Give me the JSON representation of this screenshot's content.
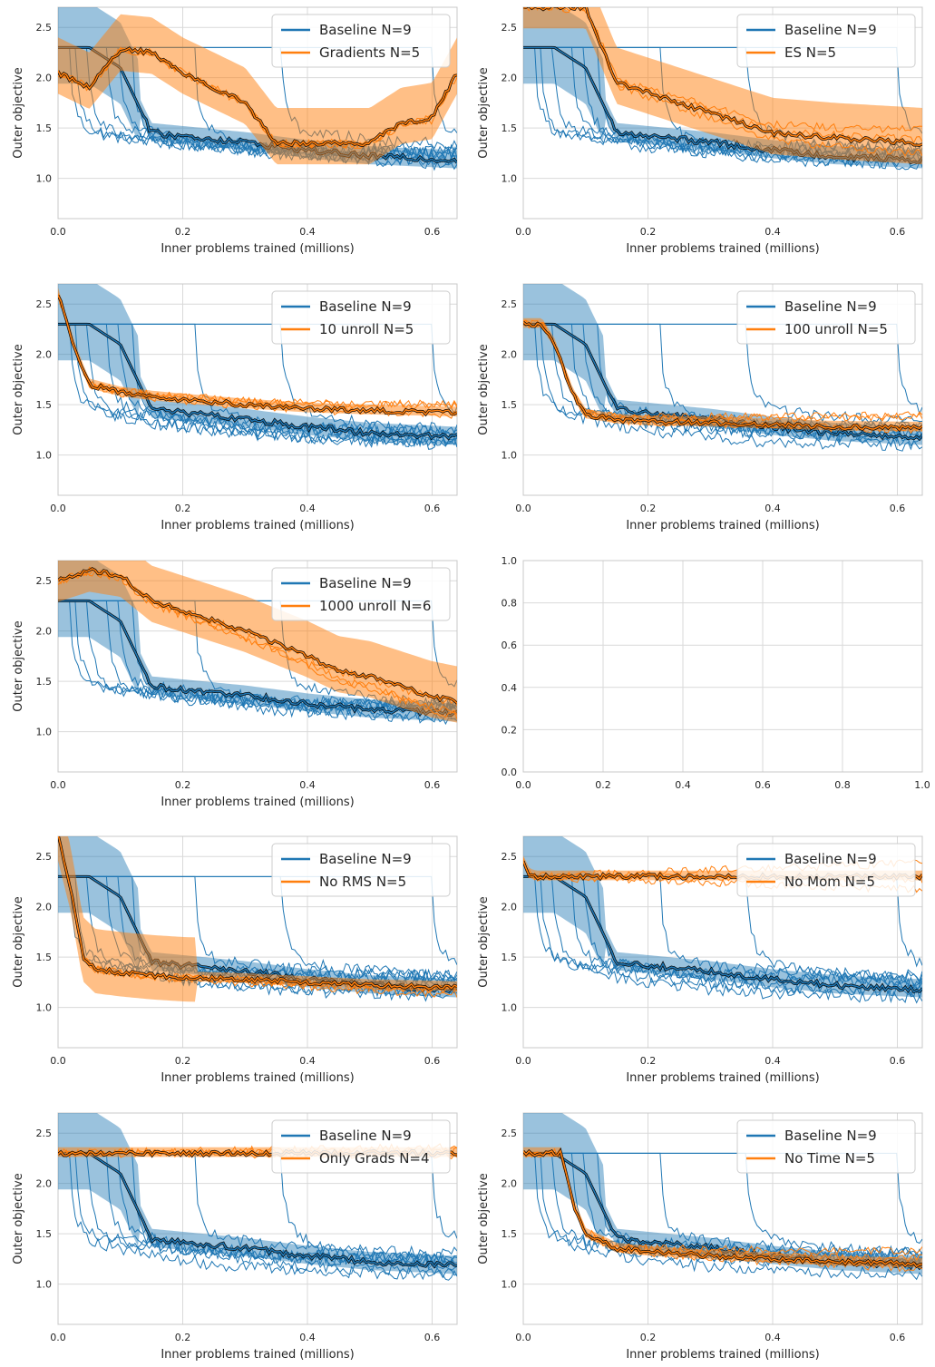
{
  "colors": {
    "baseline": "#1f77b4",
    "variant": "#ff7f0e",
    "grid": "#d9d9d9",
    "frame": "#c8c8c8"
  },
  "chart_data": [
    {
      "type": "line",
      "panel": 1,
      "xlabel": "Inner problems trained (millions)",
      "ylabel": "Outer objective",
      "xlim": [
        0,
        0.64
      ],
      "ylim": [
        0.6,
        2.7
      ],
      "xticks": [
        "0.0",
        "0.2",
        "0.4",
        "0.6"
      ],
      "yticks": [
        "1.0",
        "1.5",
        "2.0",
        "2.5"
      ],
      "grid": true,
      "legend_position": "top-right",
      "series": [
        {
          "name": "Baseline N=9",
          "x": [
            0,
            0.05,
            0.1,
            0.15,
            0.2,
            0.3,
            0.4,
            0.5,
            0.64
          ],
          "y": [
            2.3,
            2.3,
            2.1,
            1.45,
            1.42,
            1.36,
            1.28,
            1.22,
            1.18
          ]
        },
        {
          "name": "Gradients N=5",
          "x": [
            0,
            0.05,
            0.1,
            0.15,
            0.2,
            0.3,
            0.35,
            0.4,
            0.5,
            0.55,
            0.6,
            0.64
          ],
          "y": [
            2.05,
            1.9,
            2.28,
            2.25,
            2.05,
            1.75,
            1.35,
            1.35,
            1.35,
            1.55,
            1.6,
            2.05
          ]
        }
      ]
    },
    {
      "type": "line",
      "panel": 2,
      "xlabel": "Inner problems trained (millions)",
      "ylabel": "Outer objective",
      "xlim": [
        0,
        0.64
      ],
      "ylim": [
        0.6,
        2.7
      ],
      "xticks": [
        "0.0",
        "0.2",
        "0.4",
        "0.6"
      ],
      "yticks": [
        "1.0",
        "1.5",
        "2.0",
        "2.5"
      ],
      "grid": true,
      "legend_position": "top-right",
      "series": [
        {
          "name": "Baseline N=9",
          "x": [
            0,
            0.05,
            0.1,
            0.15,
            0.2,
            0.3,
            0.4,
            0.5,
            0.64
          ],
          "y": [
            2.3,
            2.3,
            2.1,
            1.45,
            1.42,
            1.36,
            1.28,
            1.22,
            1.18
          ]
        },
        {
          "name": "ES N=5",
          "x": [
            0,
            0.1,
            0.15,
            0.2,
            0.3,
            0.35,
            0.4,
            0.5,
            0.64
          ],
          "y": [
            2.7,
            2.7,
            1.95,
            1.85,
            1.65,
            1.55,
            1.45,
            1.4,
            1.35
          ]
        }
      ]
    },
    {
      "type": "line",
      "panel": 3,
      "xlabel": "Inner problems trained (millions)",
      "ylabel": "Outer objective",
      "xlim": [
        0,
        0.64
      ],
      "ylim": [
        0.6,
        2.7
      ],
      "xticks": [
        "0.0",
        "0.2",
        "0.4",
        "0.6"
      ],
      "yticks": [
        "1.0",
        "1.5",
        "2.0",
        "2.5"
      ],
      "grid": true,
      "legend_position": "top-right",
      "series": [
        {
          "name": "Baseline N=9",
          "x": [
            0,
            0.05,
            0.1,
            0.15,
            0.2,
            0.3,
            0.4,
            0.5,
            0.64
          ],
          "y": [
            2.3,
            2.3,
            2.1,
            1.45,
            1.42,
            1.36,
            1.28,
            1.22,
            1.18
          ]
        },
        {
          "name": "10 unroll N=5",
          "x": [
            0,
            0.03,
            0.05,
            0.1,
            0.15,
            0.2,
            0.3,
            0.4,
            0.5,
            0.64
          ],
          "y": [
            2.6,
            2.0,
            1.7,
            1.62,
            1.58,
            1.55,
            1.5,
            1.46,
            1.44,
            1.42
          ]
        }
      ]
    },
    {
      "type": "line",
      "panel": 4,
      "xlabel": "Inner problems trained (millions)",
      "ylabel": "Outer objective",
      "xlim": [
        0,
        0.64
      ],
      "ylim": [
        0.6,
        2.7
      ],
      "xticks": [
        "0.0",
        "0.2",
        "0.4",
        "0.6"
      ],
      "yticks": [
        "1.0",
        "1.5",
        "2.0",
        "2.5"
      ],
      "grid": true,
      "legend_position": "top-right",
      "series": [
        {
          "name": "Baseline N=9",
          "x": [
            0,
            0.05,
            0.1,
            0.15,
            0.2,
            0.3,
            0.4,
            0.5,
            0.64
          ],
          "y": [
            2.3,
            2.3,
            2.1,
            1.45,
            1.42,
            1.36,
            1.28,
            1.22,
            1.18
          ]
        },
        {
          "name": "100 unroll N=5",
          "x": [
            0,
            0.03,
            0.05,
            0.08,
            0.1,
            0.15,
            0.2,
            0.3,
            0.4,
            0.5,
            0.64
          ],
          "y": [
            2.3,
            2.3,
            2.1,
            1.6,
            1.4,
            1.35,
            1.33,
            1.32,
            1.3,
            1.28,
            1.27
          ]
        }
      ]
    },
    {
      "type": "line",
      "panel": 5,
      "xlabel": "Inner problems trained (millions)",
      "ylabel": "Outer objective",
      "xlim": [
        0,
        0.64
      ],
      "ylim": [
        0.6,
        2.7
      ],
      "xticks": [
        "0.0",
        "0.2",
        "0.4",
        "0.6"
      ],
      "yticks": [
        "1.0",
        "1.5",
        "2.0",
        "2.5"
      ],
      "grid": true,
      "legend_position": "top-right",
      "series": [
        {
          "name": "Baseline N=9",
          "x": [
            0,
            0.05,
            0.1,
            0.15,
            0.2,
            0.3,
            0.4,
            0.5,
            0.64
          ],
          "y": [
            2.3,
            2.3,
            2.1,
            1.45,
            1.42,
            1.36,
            1.28,
            1.22,
            1.18
          ]
        },
        {
          "name": "1000 unroll N=6",
          "x": [
            0,
            0.05,
            0.1,
            0.15,
            0.2,
            0.3,
            0.4,
            0.45,
            0.5,
            0.55,
            0.6,
            0.64
          ],
          "y": [
            2.5,
            2.6,
            2.55,
            2.3,
            2.2,
            2.0,
            1.75,
            1.6,
            1.55,
            1.45,
            1.35,
            1.3
          ]
        }
      ]
    },
    {
      "type": "line",
      "panel": 6,
      "xlabel": "",
      "ylabel": "",
      "xlim": [
        0,
        1
      ],
      "ylim": [
        0,
        1
      ],
      "xticks": [
        "0.0",
        "0.2",
        "0.4",
        "0.6",
        "0.8",
        "1.0"
      ],
      "yticks": [
        "0.0",
        "0.2",
        "0.4",
        "0.6",
        "0.8",
        "1.0"
      ],
      "grid": true,
      "series": []
    },
    {
      "type": "line",
      "panel": 7,
      "xlabel": "Inner problems trained (millions)",
      "ylabel": "Outer objective",
      "xlim": [
        0,
        0.64
      ],
      "ylim": [
        0.6,
        2.7
      ],
      "xticks": [
        "0.0",
        "0.2",
        "0.4",
        "0.6"
      ],
      "yticks": [
        "1.0",
        "1.5",
        "2.0",
        "2.5"
      ],
      "grid": true,
      "legend_position": "top-right",
      "series": [
        {
          "name": "Baseline N=9",
          "x": [
            0,
            0.05,
            0.1,
            0.15,
            0.2,
            0.3,
            0.4,
            0.5,
            0.64
          ],
          "y": [
            2.3,
            2.3,
            2.1,
            1.45,
            1.42,
            1.36,
            1.28,
            1.22,
            1.18
          ]
        },
        {
          "name": "No RMS N=5",
          "x": [
            0,
            0.02,
            0.04,
            0.06,
            0.1,
            0.15,
            0.2,
            0.3,
            0.4,
            0.5,
            0.64
          ],
          "y": [
            2.7,
            2.2,
            1.5,
            1.38,
            1.35,
            1.32,
            1.3,
            1.28,
            1.25,
            1.22,
            1.2
          ]
        }
      ]
    },
    {
      "type": "line",
      "panel": 8,
      "xlabel": "Inner problems trained (millions)",
      "ylabel": "Outer objective",
      "xlim": [
        0,
        0.64
      ],
      "ylim": [
        0.6,
        2.7
      ],
      "xticks": [
        "0.0",
        "0.2",
        "0.4",
        "0.6"
      ],
      "yticks": [
        "1.0",
        "1.5",
        "2.0",
        "2.5"
      ],
      "grid": true,
      "legend_position": "top-right",
      "series": [
        {
          "name": "Baseline N=9",
          "x": [
            0,
            0.05,
            0.1,
            0.15,
            0.2,
            0.3,
            0.4,
            0.5,
            0.64
          ],
          "y": [
            2.3,
            2.3,
            2.1,
            1.45,
            1.42,
            1.36,
            1.28,
            1.22,
            1.18
          ]
        },
        {
          "name": "No Mom N=5",
          "x": [
            0,
            0.01,
            0.02,
            0.64
          ],
          "y": [
            2.45,
            2.32,
            2.3,
            2.3
          ]
        }
      ]
    },
    {
      "type": "line",
      "panel": 9,
      "xlabel": "Inner problems trained (millions)",
      "ylabel": "Outer objective",
      "xlim": [
        0,
        0.64
      ],
      "ylim": [
        0.6,
        2.7
      ],
      "xticks": [
        "0.0",
        "0.2",
        "0.4",
        "0.6"
      ],
      "yticks": [
        "1.0",
        "1.5",
        "2.0",
        "2.5"
      ],
      "grid": true,
      "legend_position": "top-right",
      "series": [
        {
          "name": "Baseline N=9",
          "x": [
            0,
            0.05,
            0.1,
            0.15,
            0.2,
            0.3,
            0.4,
            0.5,
            0.64
          ],
          "y": [
            2.3,
            2.3,
            2.1,
            1.45,
            1.42,
            1.36,
            1.28,
            1.22,
            1.18
          ]
        },
        {
          "name": "Only Grads N=4",
          "x": [
            0,
            0.64
          ],
          "y": [
            2.3,
            2.3
          ]
        }
      ]
    },
    {
      "type": "line",
      "panel": 10,
      "xlabel": "Inner problems trained (millions)",
      "ylabel": "Outer objective",
      "xlim": [
        0,
        0.64
      ],
      "ylim": [
        0.6,
        2.7
      ],
      "xticks": [
        "0.0",
        "0.2",
        "0.4",
        "0.6"
      ],
      "yticks": [
        "1.0",
        "1.5",
        "2.0",
        "2.5"
      ],
      "grid": true,
      "legend_position": "top-right",
      "series": [
        {
          "name": "Baseline N=9",
          "x": [
            0,
            0.05,
            0.1,
            0.15,
            0.2,
            0.3,
            0.4,
            0.5,
            0.64
          ],
          "y": [
            2.3,
            2.3,
            2.1,
            1.45,
            1.42,
            1.36,
            1.28,
            1.22,
            1.18
          ]
        },
        {
          "name": "No Time N=5",
          "x": [
            0,
            0.06,
            0.08,
            0.1,
            0.15,
            0.2,
            0.3,
            0.4,
            0.5,
            0.64
          ],
          "y": [
            2.3,
            2.3,
            1.8,
            1.5,
            1.35,
            1.32,
            1.28,
            1.25,
            1.22,
            1.2
          ]
        }
      ]
    }
  ]
}
